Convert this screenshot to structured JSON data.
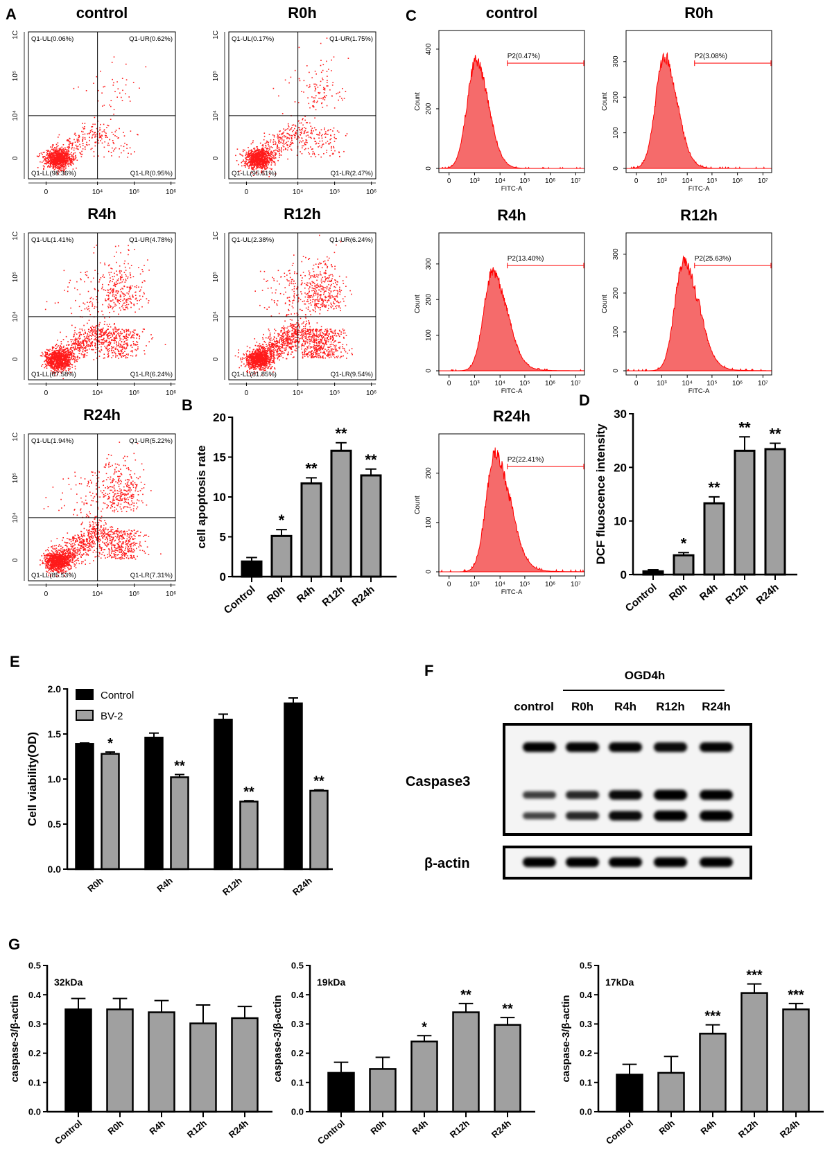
{
  "panel_labels": {
    "A": "A",
    "B": "B",
    "C": "C",
    "D": "D",
    "E": "E",
    "F": "F",
    "G": "G"
  },
  "chart_data": {
    "A": {
      "type": "scatter",
      "x_ticks": [
        "0",
        "10⁴",
        "10⁵",
        "10⁶"
      ],
      "y_ticks": [
        "0",
        "10⁴",
        "10⁵",
        "1C"
      ],
      "samples": [
        {
          "title": "control",
          "UL": "Q1-UL(0.06%)",
          "UR": "Q1-UR(0.62%)",
          "LL": "Q1-LL(98.36%)",
          "LR": "Q1-LR(0.95%)",
          "pct": {
            "UL": 0.06,
            "UR": 0.62,
            "LL": 98.36,
            "LR": 0.95
          }
        },
        {
          "title": "R0h",
          "UL": "Q1-UL(0.17%)",
          "UR": "Q1-UR(1.75%)",
          "LL": "Q1-LL(95.61%)",
          "LR": "Q1-LR(2.47%)",
          "pct": {
            "UL": 0.17,
            "UR": 1.75,
            "LL": 95.61,
            "LR": 2.47
          }
        },
        {
          "title": "R4h",
          "UL": "Q1-UL(1.41%)",
          "UR": "Q1-UR(4.78%)",
          "LL": "Q1-LL(87.58%)",
          "LR": "Q1-LR(6.24%)",
          "pct": {
            "UL": 1.41,
            "UR": 4.78,
            "LL": 87.58,
            "LR": 6.24
          }
        },
        {
          "title": "R12h",
          "UL": "Q1-UL(2.38%)",
          "UR": "Q1-UR(6.24%)",
          "LL": "Q1-LL(81.85%)",
          "LR": "Q1-LR(9.54%)",
          "pct": {
            "UL": 2.38,
            "UR": 6.24,
            "LL": 81.85,
            "LR": 9.54
          }
        },
        {
          "title": "R24h",
          "UL": "Q1-UL(1.94%)",
          "UR": "Q1-UR(5.22%)",
          "LL": "Q1-LL(85.53%)",
          "LR": "Q1-LR(7.31%)",
          "pct": {
            "UL": 1.94,
            "UR": 5.22,
            "LL": 85.53,
            "LR": 7.31
          }
        }
      ]
    },
    "B": {
      "type": "bar",
      "ylabel": "cell apoptosis rate",
      "ylim": [
        0,
        20
      ],
      "y_ticks": [
        "0",
        "5",
        "10",
        "15",
        "20"
      ],
      "categories": [
        "Control",
        "R0h",
        "R4h",
        "R12h",
        "R24h"
      ],
      "values": [
        1.9,
        5.1,
        11.7,
        15.8,
        12.7
      ],
      "errors": [
        0.5,
        0.8,
        0.7,
        1.0,
        0.8
      ],
      "significance": [
        "",
        "*",
        "**",
        "**",
        "**"
      ]
    },
    "C": {
      "type": "histogram",
      "xlabel": "FITC-A",
      "ylabel": "Count",
      "x_ticks": [
        "0",
        "10³",
        "10⁴",
        "10⁵",
        "10⁶",
        "10⁷"
      ],
      "samples": [
        {
          "title": "control",
          "gate": "P2(0.47%)",
          "y_ticks": [
            "0",
            "200",
            "400"
          ],
          "ymax": 430,
          "peak": 360,
          "peak_log": 3.05
        },
        {
          "title": "R0h",
          "gate": "P2(3.08%)",
          "y_ticks": [
            "0",
            "100",
            "200",
            "300"
          ],
          "ymax": 360,
          "peak": 315,
          "peak_log": 3.1
        },
        {
          "title": "R4h",
          "gate": "P2(13.40%)",
          "y_ticks": [
            "0",
            "100",
            "200",
            "300"
          ],
          "ymax": 360,
          "peak": 275,
          "peak_log": 3.7
        },
        {
          "title": "R12h",
          "gate": "P2(25.63%)",
          "y_ticks": [
            "0",
            "100",
            "200",
            "300"
          ],
          "ymax": 330,
          "peak": 280,
          "peak_log": 3.85
        },
        {
          "title": "R24h",
          "gate": "P2(22.41%)",
          "y_ticks": [
            "0",
            "100",
            "200"
          ],
          "ymax": 260,
          "peak": 240,
          "peak_log": 3.8
        }
      ]
    },
    "D": {
      "type": "bar",
      "ylabel": "DCF fluoscence intensity",
      "ylim": [
        0,
        30
      ],
      "y_ticks": [
        "0",
        "10",
        "20",
        "30"
      ],
      "categories": [
        "Control",
        "R0h",
        "R4h",
        "R12h",
        "R24h"
      ],
      "values": [
        0.6,
        3.6,
        13.3,
        23.1,
        23.4
      ],
      "errors": [
        0.3,
        0.5,
        1.2,
        2.6,
        1.1
      ],
      "significance": [
        "",
        "*",
        "**",
        "**",
        "**"
      ]
    },
    "E": {
      "type": "bar",
      "ylabel": "Cell viability(OD)",
      "ylim": [
        0,
        2.0
      ],
      "y_ticks": [
        "0.0",
        "0.5",
        "1.0",
        "1.5",
        "2.0"
      ],
      "categories": [
        "R0h",
        "R4h",
        "R12h",
        "R24h"
      ],
      "legend": "top-left",
      "series": [
        {
          "name": "Control",
          "color": "#000000",
          "values": [
            1.39,
            1.46,
            1.66,
            1.84
          ],
          "errors": [
            0.01,
            0.05,
            0.06,
            0.06
          ],
          "significance": [
            "",
            "",
            "",
            ""
          ]
        },
        {
          "name": "BV-2",
          "color": "#a0a0a0",
          "values": [
            1.28,
            1.02,
            0.75,
            0.87
          ],
          "errors": [
            0.02,
            0.03,
            0.01,
            0.01
          ],
          "significance": [
            "*",
            "**",
            "**",
            "**"
          ]
        }
      ]
    },
    "F": {
      "type": "blot",
      "group_label": "OGD4h",
      "lanes": [
        "control",
        "R0h",
        "R4h",
        "R12h",
        "R24h"
      ],
      "rows": [
        {
          "label": "Caspase3",
          "bands": [
            {
              "name": "32kDa",
              "intensity": [
                1.0,
                0.9,
                0.9,
                0.85,
                0.9
              ]
            },
            {
              "name": "19kDa",
              "intensity": [
                0.5,
                0.65,
                0.85,
                1.0,
                0.95
              ]
            },
            {
              "name": "17kDa",
              "intensity": [
                0.45,
                0.65,
                0.85,
                1.0,
                1.0
              ]
            }
          ]
        },
        {
          "label": "β-actin",
          "bands": [
            {
              "name": "actin",
              "intensity": [
                1,
                1,
                1,
                1,
                1
              ]
            }
          ]
        }
      ]
    },
    "G": [
      {
        "type": "bar",
        "title": "32kDa",
        "ylabel": "caspase-3/β-actin",
        "ylim": [
          0,
          0.5
        ],
        "y_ticks": [
          "0.0",
          "0.1",
          "0.2",
          "0.3",
          "0.4",
          "0.5"
        ],
        "categories": [
          "Control",
          "R0h",
          "R4h",
          "R12h",
          "R24h"
        ],
        "values": [
          0.35,
          0.35,
          0.34,
          0.302,
          0.32
        ],
        "errors": [
          0.037,
          0.037,
          0.04,
          0.063,
          0.04
        ],
        "significance": [
          "",
          "",
          "",
          "",
          ""
        ]
      },
      {
        "type": "bar",
        "title": "19kDa",
        "ylabel": "caspase-3/β-actin",
        "ylim": [
          0,
          0.5
        ],
        "y_ticks": [
          "0.0",
          "0.1",
          "0.2",
          "0.3",
          "0.4",
          "0.5"
        ],
        "categories": [
          "Control",
          "R0h",
          "R4h",
          "R12h",
          "R24h"
        ],
        "values": [
          0.133,
          0.146,
          0.24,
          0.34,
          0.297
        ],
        "errors": [
          0.036,
          0.04,
          0.02,
          0.03,
          0.025
        ],
        "significance": [
          "",
          "",
          "*",
          "**",
          "**"
        ]
      },
      {
        "type": "bar",
        "title": "17kDa",
        "ylabel": "caspase-3/β-actin",
        "ylim": [
          0,
          0.5
        ],
        "y_ticks": [
          "0.0",
          "0.1",
          "0.2",
          "0.3",
          "0.4",
          "0.5"
        ],
        "categories": [
          "Control",
          "R0h",
          "R4h",
          "R12h",
          "R24h"
        ],
        "values": [
          0.127,
          0.133,
          0.267,
          0.406,
          0.35
        ],
        "errors": [
          0.035,
          0.056,
          0.03,
          0.031,
          0.02
        ],
        "significance": [
          "",
          "",
          "***",
          "***",
          "***"
        ]
      }
    ]
  }
}
